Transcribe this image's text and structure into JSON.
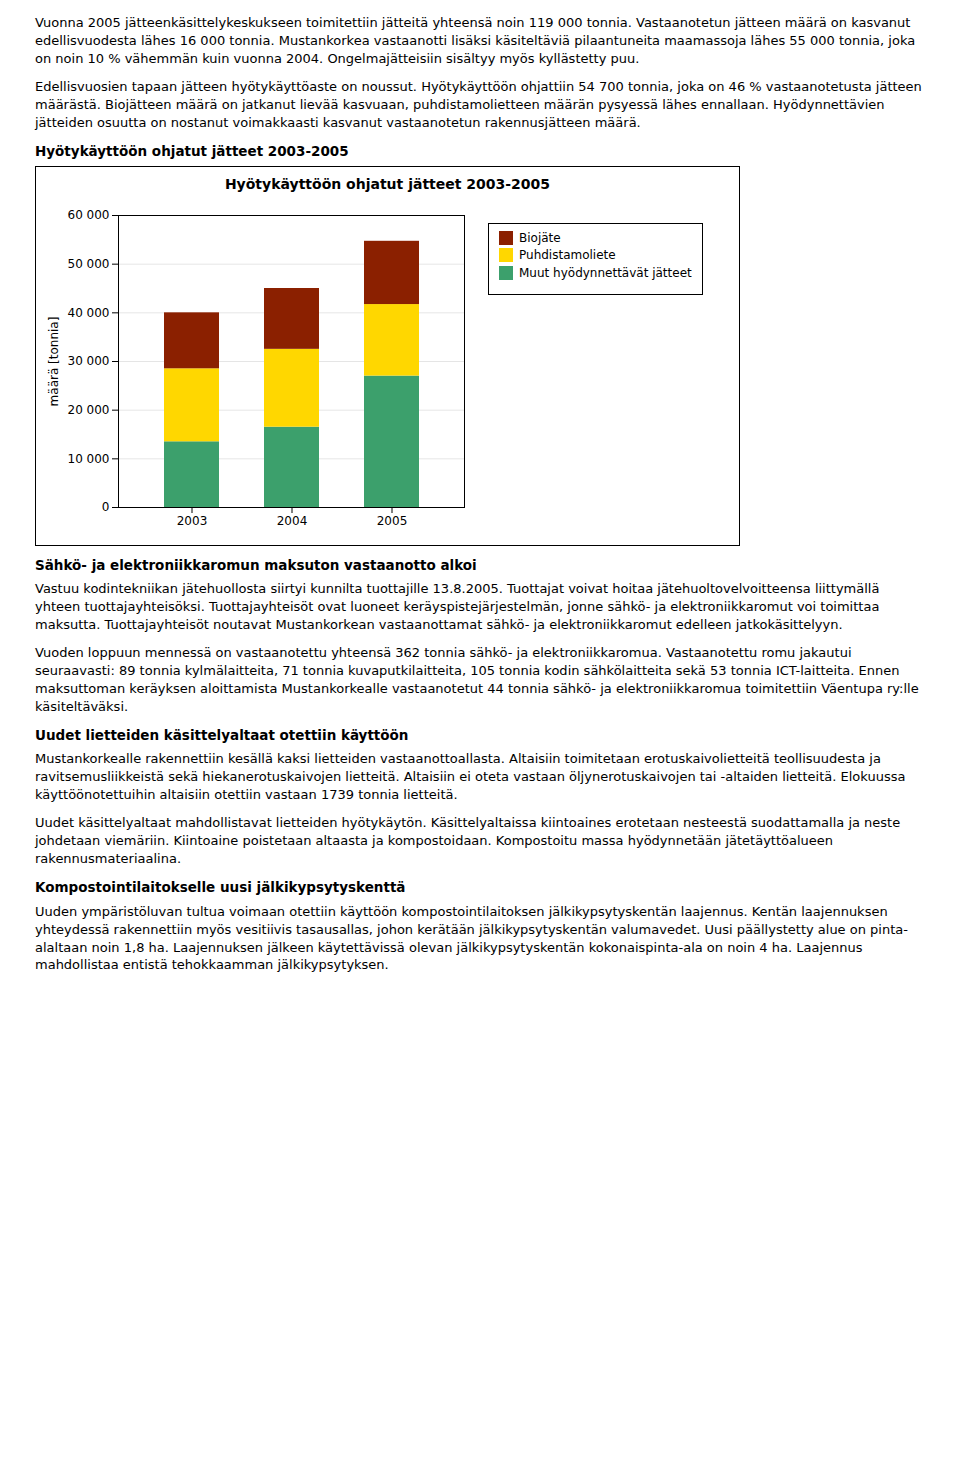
{
  "text_before_chart": [
    {
      "type": "paragraph",
      "text": "Vuonna 2005 jätteenkäsittelykeskukseen toimitettiin jätteitä yhteensä noin 119 000 tonnia. Vastaanotetun jätteen määrä on kasvanut edellisvuodesta lähes 16 000 tonnia. Mustankorkea vastaanotti lisäksi käsiteltäviä pilaantuneita maamassoja lähes 55 000 tonnia, joka on noin 10 % vähemmän kuin vuonna 2004. Ongelmajätteisiin sisältyy myös kyllästetty puu."
    },
    {
      "type": "paragraph",
      "text": "Edellisvuosien tapaan jätteen hyötykäyttöaste on noussut. Hyötykäyttöön ohjattiin 54 700 tonnia, joka on 46 % vastaanotetusta jätteen määrästä. Biojätteen määrä on jatkanut lievää kasvuaan, puhdistamolietteen määrän pysyessä lähes ennallaan. Hyödynnettävien jätteiden osuutta on nostanut voimakkaasti kasvanut vastaanotetun rakennusjätteen määrä."
    },
    {
      "type": "heading",
      "text": "Hyötykäyttöön ohjatut jätteet 2003-2005"
    }
  ],
  "chart_data": {
    "type": "bar",
    "stacked": true,
    "title": "Hyötykäyttöön ohjatut jätteet 2003-2005",
    "ylabel": "määrä [tonnia]",
    "categories": [
      "2003",
      "2004",
      "2005"
    ],
    "series": [
      {
        "name": "Biojäte",
        "color": "#8B2000",
        "values": [
          11500,
          12500,
          13000
        ]
      },
      {
        "name": "Puhdistamoliete",
        "color": "#FFD700",
        "values": [
          15000,
          16000,
          14700
        ]
      },
      {
        "name": "Muut hyödynnettävät jätteet",
        "color": "#3CA06C",
        "values": [
          13500,
          16500,
          27000
        ]
      }
    ],
    "ylim": [
      0,
      60000
    ],
    "yticks": [
      0,
      {
        "value": 10000,
        "label": "10 000"
      },
      {
        "value": 20000,
        "label": "20 000"
      },
      {
        "value": 30000,
        "label": "30 000"
      },
      {
        "value": 40000,
        "label": "40 000"
      },
      {
        "value": 50000,
        "label": "50 000"
      },
      {
        "value": 60000,
        "label": "60 000"
      }
    ],
    "grid": true,
    "legend": "right"
  },
  "text_after_chart": [
    {
      "type": "heading",
      "text": "Sähkö- ja elektroniikkaromun maksuton vastaanotto alkoi"
    },
    {
      "type": "paragraph",
      "text": "Vastuu kodintekniikan jätehuollosta siirtyi kunnilta tuottajille 13.8.2005. Tuottajat voivat hoitaa jätehuoltovelvoitteensa liittymällä yhteen tuottajayhteisöksi. Tuottajayhteisöt ovat luoneet keräyspistejärjestelmän, jonne sähkö- ja elektroniikkaromut voi toimittaa maksutta. Tuottajayhteisöt noutavat Mustankorkean vastaanottamat sähkö- ja elektroniikkaromut edelleen jatkokäsittelyyn."
    },
    {
      "type": "paragraph",
      "text": "Vuoden loppuun mennessä on vastaanotettu yhteensä 362 tonnia sähkö- ja elektroniikkaromua. Vastaanotettu romu jakautui seuraavasti: 89 tonnia kylmälaitteita, 71 tonnia kuvaputkilaitteita, 105 tonnia kodin sähkölaitteita sekä 53 tonnia ICT-laitteita. Ennen maksuttoman keräyksen aloittamista Mustankorkealle vastaanotetut 44 tonnia sähkö- ja elektroniikkaromua toimitettiin Väentupa ry:lle käsiteltäväksi."
    },
    {
      "type": "heading",
      "text": "Uudet lietteiden käsittelyaltaat otettiin käyttöön"
    },
    {
      "type": "paragraph",
      "text": "Mustankorkealle rakennettiin kesällä kaksi lietteiden vastaanottoallasta. Altaisiin toimitetaan erotuskaivolietteitä teollisuudesta ja ravitsemusliikkeistä sekä hiekanerotuskaivojen lietteitä. Altaisiin ei oteta vastaan öljynerotuskaivojen tai -altaiden lietteitä. Elokuussa käyttöönotettuihin altaisiin otettiin vastaan 1739 tonnia lietteitä."
    },
    {
      "type": "paragraph",
      "text": "Uudet käsittelyaltaat mahdollistavat lietteiden hyötykäytön. Käsittelyaltaissa kiintoaines erotetaan nesteestä suodattamalla ja neste johdetaan viemäriin. Kiintoaine poistetaan altaasta ja kompostoidaan. Kompostoitu massa hyödynnetään jätetäyttöalueen rakennusmateriaalina."
    },
    {
      "type": "heading",
      "text": "Kompostointilaitokselle uusi jälkikypsytyskenttä"
    },
    {
      "type": "paragraph",
      "text": "Uuden ympäristöluvan tultua voimaan otettiin käyttöön kompostointilaitoksen jälkikypsytyskentän laajennus. Kentän laajennuksen yhteydessä rakennettiin myös vesitiivis tasausallas, johon kerätään jälkikypsytyskentän valumavedet. Uusi päällystetty alue on pinta-alaltaan noin 1,8 ha. Laajennuksen jälkeen käytettävissä olevan jälkikypsytyskentän kokonaispinta-ala on noin 4 ha. Laajennus mahdollistaa entistä tehokkaamman jälkikypsytyksen."
    }
  ]
}
